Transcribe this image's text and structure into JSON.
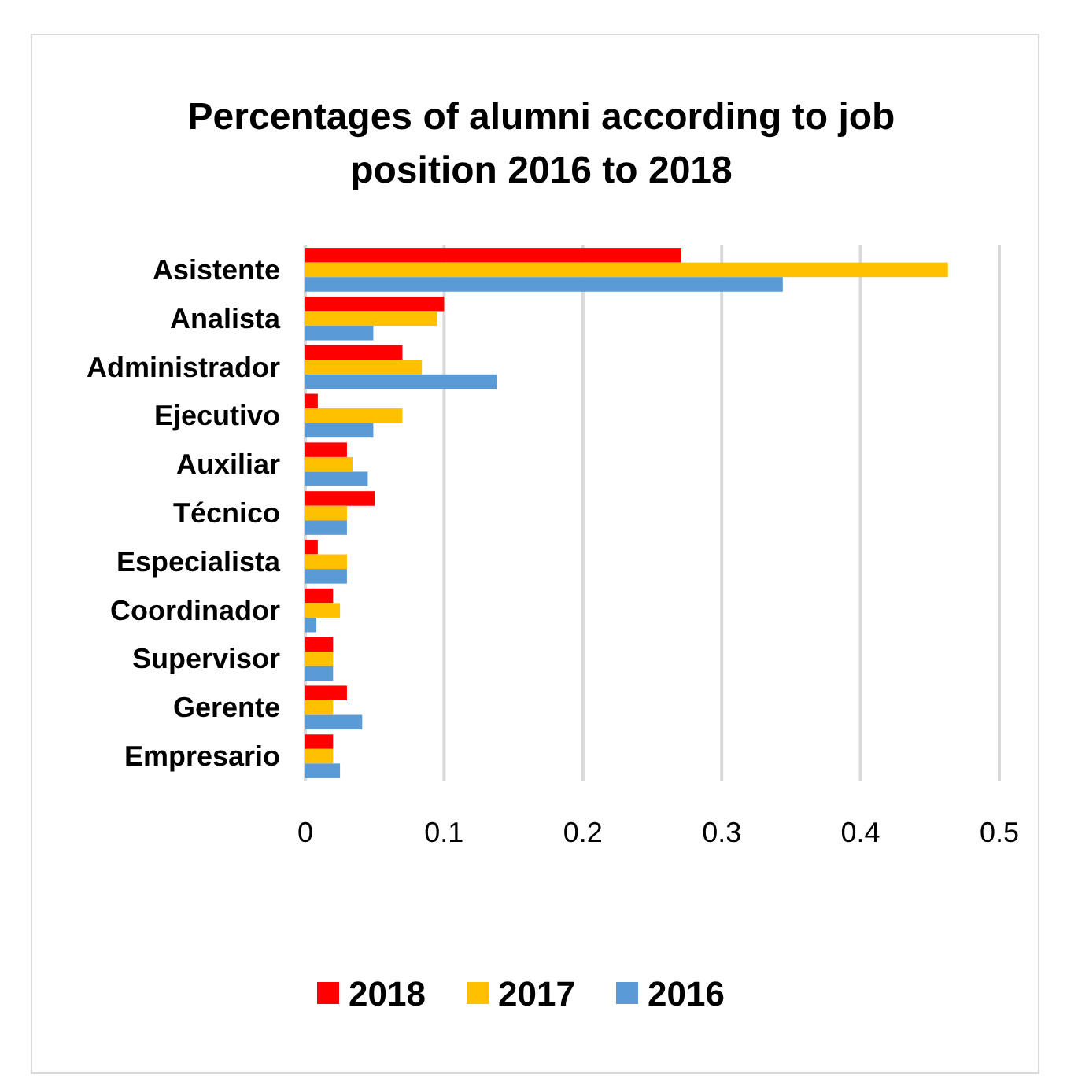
{
  "chart_data": {
    "type": "bar",
    "orientation": "horizontal",
    "title": "Percentages of alumni according to job position 2016 to 2018",
    "categories": [
      "Asistente",
      "Analista",
      "Administrador",
      "Ejecutivo",
      "Auxiliar",
      "Técnico",
      "Especialista",
      "Coordinador",
      "Supervisor",
      "Gerente",
      "Empresario"
    ],
    "series": [
      {
        "name": "2018",
        "color": "#ff0000",
        "values": [
          0.271,
          0.1,
          0.07,
          0.009,
          0.03,
          0.05,
          0.009,
          0.02,
          0.02,
          0.03,
          0.02
        ]
      },
      {
        "name": "2017",
        "color": "#ffc000",
        "values": [
          0.463,
          0.095,
          0.084,
          0.07,
          0.034,
          0.03,
          0.03,
          0.025,
          0.02,
          0.02,
          0.02
        ]
      },
      {
        "name": "2016",
        "color": "#5b9bd5",
        "values": [
          0.344,
          0.049,
          0.138,
          0.049,
          0.045,
          0.03,
          0.03,
          0.008,
          0.02,
          0.041,
          0.025
        ]
      }
    ],
    "xlim": [
      0,
      0.5
    ],
    "xticks": [
      0,
      0.1,
      0.2,
      0.3,
      0.4,
      0.5
    ],
    "grid": "x",
    "legend": "bottom"
  }
}
